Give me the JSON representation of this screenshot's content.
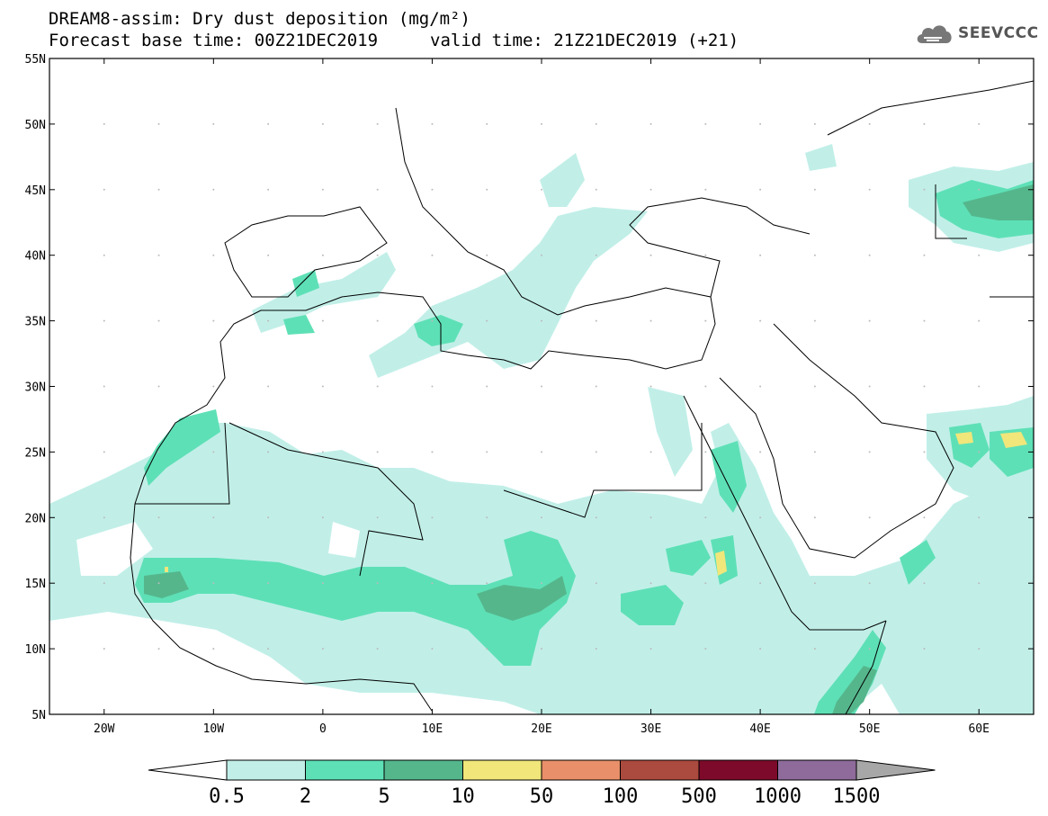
{
  "title_line1": "DREAM8-assim: Dry dust deposition (mg/m²)",
  "title_line2_left": "Forecast base time: 00Z21DEC2019",
  "title_line2_right": "valid time: 21Z21DEC2019 (+21)",
  "logo": {
    "icon": "cloud-icon",
    "text": "SEEVCCC"
  },
  "map": {
    "lon_range": [
      -25,
      65
    ],
    "lat_range": [
      5,
      55
    ],
    "lat_labels": [
      "55N",
      "50N",
      "45N",
      "40N",
      "35N",
      "30N",
      "25N",
      "20N",
      "15N",
      "10N",
      "5N"
    ],
    "lon_labels": [
      "20W",
      "10W",
      "0",
      "10E",
      "20E",
      "30E",
      "40E",
      "50E",
      "60E"
    ]
  },
  "colorbar": {
    "labels": [
      "0.5",
      "2",
      "5",
      "10",
      "50",
      "100",
      "500",
      "1000",
      "1500"
    ],
    "colors": [
      "#c1efe8",
      "#5ee0b6",
      "#55b68c",
      "#f0e67a",
      "#e98f69",
      "#ab4a3e",
      "#7d0a2a",
      "#8e6b9a",
      "#a7a7a7"
    ],
    "low_arrow_color": "#ffffff"
  }
}
